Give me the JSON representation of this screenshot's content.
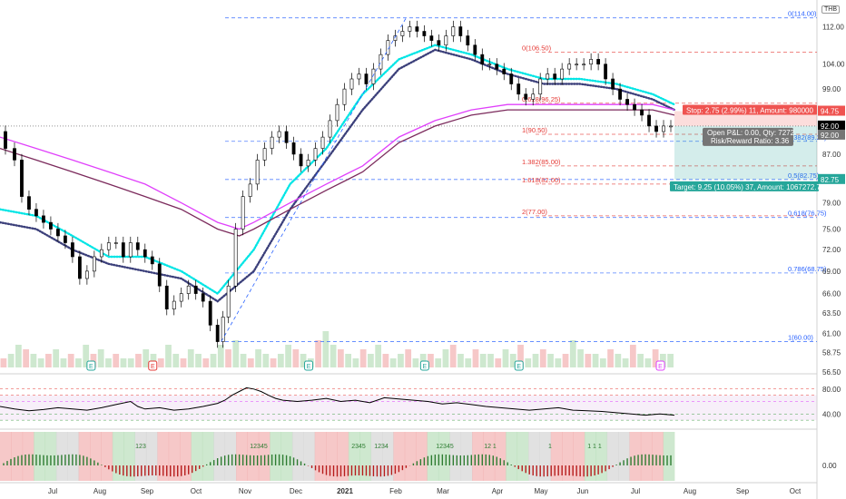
{
  "currency": "THB",
  "chart_data": [
    {
      "type": "candlestick",
      "panel": "price",
      "y_axis_ticks": [
        56.5,
        58.75,
        61.0,
        63.5,
        66.0,
        69.0,
        72.0,
        75.0,
        79.0,
        83.0,
        87.0,
        92.0,
        99.0,
        104.0,
        112.0
      ],
      "ylim": [
        56.5,
        116
      ],
      "x_axis_ticks": [
        {
          "label": "Jul",
          "bold": false
        },
        {
          "label": "Aug",
          "bold": false
        },
        {
          "label": "Sep",
          "bold": false
        },
        {
          "label": "Oct",
          "bold": false
        },
        {
          "label": "Nov",
          "bold": false
        },
        {
          "label": "Dec",
          "bold": false
        },
        {
          "label": "2021",
          "bold": true
        },
        {
          "label": "Feb",
          "bold": false
        },
        {
          "label": "Mar",
          "bold": false
        },
        {
          "label": "Apr",
          "bold": false
        },
        {
          "label": "May",
          "bold": false
        },
        {
          "label": "Jun",
          "bold": false
        },
        {
          "label": "Jul",
          "bold": false
        },
        {
          "label": "Aug",
          "bold": false
        },
        {
          "label": "Sep",
          "bold": false
        },
        {
          "label": "Oct",
          "bold": false
        }
      ],
      "close_path": [
        [
          0,
          91
        ],
        [
          3,
          88
        ],
        [
          5,
          86
        ],
        [
          7,
          80
        ],
        [
          9,
          78
        ],
        [
          11,
          77
        ],
        [
          13,
          76
        ],
        [
          15,
          75
        ],
        [
          17,
          74
        ],
        [
          19,
          73
        ],
        [
          21,
          71
        ],
        [
          23,
          68
        ],
        [
          25,
          69
        ],
        [
          27,
          71
        ],
        [
          29,
          72
        ],
        [
          31,
          73
        ],
        [
          33,
          73
        ],
        [
          35,
          71
        ],
        [
          37,
          73
        ],
        [
          39,
          72
        ],
        [
          41,
          71
        ],
        [
          43,
          70
        ],
        [
          45,
          67
        ],
        [
          47,
          64
        ],
        [
          49,
          65
        ],
        [
          51,
          66
        ],
        [
          53,
          67
        ],
        [
          55,
          66
        ],
        [
          57,
          65
        ],
        [
          59,
          62
        ],
        [
          61,
          60
        ],
        [
          62,
          63
        ],
        [
          64,
          67
        ],
        [
          66,
          75
        ],
        [
          68,
          80
        ],
        [
          70,
          82
        ],
        [
          72,
          86
        ],
        [
          74,
          88
        ],
        [
          76,
          90
        ],
        [
          78,
          91
        ],
        [
          80,
          89
        ],
        [
          82,
          87
        ],
        [
          84,
          85
        ],
        [
          86,
          86
        ],
        [
          88,
          88
        ],
        [
          90,
          90
        ],
        [
          92,
          93
        ],
        [
          94,
          96
        ],
        [
          96,
          99
        ],
        [
          98,
          101
        ],
        [
          100,
          102
        ],
        [
          102,
          100
        ],
        [
          104,
          103
        ],
        [
          106,
          106
        ],
        [
          108,
          109
        ],
        [
          110,
          110
        ],
        [
          112,
          111
        ],
        [
          114,
          112
        ],
        [
          116,
          111
        ],
        [
          118,
          110
        ],
        [
          120,
          109
        ],
        [
          122,
          108
        ],
        [
          124,
          110
        ],
        [
          126,
          112
        ],
        [
          128,
          110
        ],
        [
          130,
          108
        ],
        [
          132,
          106
        ],
        [
          134,
          104
        ],
        [
          136,
          104
        ],
        [
          138,
          103
        ],
        [
          140,
          102
        ],
        [
          142,
          100
        ],
        [
          144,
          98
        ],
        [
          146,
          97
        ],
        [
          148,
          98
        ],
        [
          150,
          101
        ],
        [
          152,
          102
        ],
        [
          154,
          101
        ],
        [
          156,
          103
        ],
        [
          158,
          104
        ],
        [
          160,
          104
        ],
        [
          162,
          104
        ],
        [
          164,
          105
        ],
        [
          166,
          104
        ],
        [
          168,
          101
        ],
        [
          170,
          99
        ],
        [
          172,
          97
        ],
        [
          174,
          96
        ],
        [
          176,
          95
        ],
        [
          178,
          94
        ],
        [
          180,
          92
        ],
        [
          182,
          91
        ],
        [
          184,
          92
        ],
        [
          186,
          92
        ]
      ],
      "series": [
        {
          "name": "",
          "color": "#00e5e5",
          "style": "dotted",
          "values": [
            [
              0,
              78
            ],
            [
              10,
              77
            ],
            [
              20,
              74
            ],
            [
              30,
              71
            ],
            [
              40,
              71
            ],
            [
              50,
              69
            ],
            [
              60,
              66
            ],
            [
              70,
              72
            ],
            [
              80,
              82
            ],
            [
              90,
              88
            ],
            [
              100,
              98
            ],
            [
              110,
              105
            ],
            [
              120,
              108
            ],
            [
              130,
              106
            ],
            [
              140,
              103
            ],
            [
              150,
              101
            ],
            [
              160,
              101
            ],
            [
              170,
              100
            ],
            [
              180,
              98
            ],
            [
              186,
              96
            ]
          ]
        },
        {
          "name": "",
          "color": "#3b3f7a",
          "style": "dotted",
          "values": [
            [
              0,
              76
            ],
            [
              10,
              75
            ],
            [
              20,
              72
            ],
            [
              30,
              70
            ],
            [
              40,
              69
            ],
            [
              50,
              68
            ],
            [
              60,
              65
            ],
            [
              70,
              69
            ],
            [
              80,
              78
            ],
            [
              90,
              86
            ],
            [
              100,
              95
            ],
            [
              110,
              103
            ],
            [
              120,
              107
            ],
            [
              130,
              105
            ],
            [
              140,
              102
            ],
            [
              150,
              100
            ],
            [
              160,
              100
            ],
            [
              170,
              99
            ],
            [
              180,
              97
            ],
            [
              186,
              95
            ]
          ]
        },
        {
          "name": "",
          "color": "#e040fb",
          "style": "solid",
          "values": [
            [
              0,
              90
            ],
            [
              10,
              88
            ],
            [
              20,
              86
            ],
            [
              30,
              84
            ],
            [
              40,
              82
            ],
            [
              50,
              79
            ],
            [
              60,
              76
            ],
            [
              66,
              75
            ],
            [
              70,
              76
            ],
            [
              80,
              79
            ],
            [
              90,
              82
            ],
            [
              100,
              85
            ],
            [
              110,
              90
            ],
            [
              120,
              93
            ],
            [
              130,
              95
            ],
            [
              140,
              96
            ],
            [
              150,
              96
            ],
            [
              160,
              96
            ],
            [
              170,
              96
            ],
            [
              180,
              96
            ],
            [
              186,
              95
            ]
          ]
        },
        {
          "name": "",
          "color": "#7b2a5c",
          "style": "solid",
          "values": [
            [
              0,
              88
            ],
            [
              10,
              86
            ],
            [
              20,
              84
            ],
            [
              30,
              82
            ],
            [
              40,
              80
            ],
            [
              50,
              78
            ],
            [
              60,
              75
            ],
            [
              66,
              74
            ],
            [
              70,
              75
            ],
            [
              80,
              78
            ],
            [
              90,
              81
            ],
            [
              100,
              84
            ],
            [
              110,
              89
            ],
            [
              120,
              92
            ],
            [
              130,
              94
            ],
            [
              140,
              95
            ],
            [
              150,
              95
            ],
            [
              160,
              95
            ],
            [
              170,
              95
            ],
            [
              180,
              95
            ],
            [
              186,
              94
            ]
          ]
        }
      ],
      "volume": [
        2,
        3,
        5,
        4,
        3,
        2,
        3,
        4,
        2,
        3,
        2,
        5,
        3,
        4,
        2,
        3,
        2,
        2,
        3,
        4,
        3,
        2,
        5,
        3,
        2,
        4,
        3,
        2,
        3,
        5,
        4,
        6,
        3,
        2,
        4,
        3,
        2,
        3,
        5,
        4,
        3,
        2,
        6,
        8,
        5,
        4,
        3,
        2,
        4,
        3,
        5,
        3,
        2,
        3,
        4,
        2,
        3,
        3,
        2,
        4,
        5,
        3,
        2,
        4,
        3,
        3,
        2,
        4,
        3,
        5,
        2,
        3,
        4,
        3,
        2,
        3,
        6,
        4,
        3,
        3,
        2,
        4,
        3,
        2,
        5,
        3,
        2,
        4,
        3,
        3
      ],
      "fibonacci": [
        {
          "label": "0(114.00)",
          "value": 114.0,
          "color": "#2962ff",
          "side": "right"
        },
        {
          "label": "0(106.50)",
          "value": 106.5,
          "color": "#e53935",
          "side": "left"
        },
        {
          "label": "0.618(96.25)",
          "value": 96.25,
          "color": "#e53935",
          "side": "left"
        },
        {
          "label": "1(90.50)",
          "value": 90.5,
          "color": "#e53935",
          "side": "left"
        },
        {
          "label": "0.382(89.25)",
          "value": 89.25,
          "color": "#2962ff",
          "side": "right"
        },
        {
          "label": "1.382(85.00)",
          "value": 85.0,
          "color": "#e53935",
          "side": "left"
        },
        {
          "label": "0.5(82.75)",
          "value": 82.75,
          "color": "#2962ff",
          "side": "right"
        },
        {
          "label": "1.618(82.00)",
          "value": 82.0,
          "color": "#e53935",
          "side": "left"
        },
        {
          "label": "2(77.00)",
          "value": 77.0,
          "color": "#e53935",
          "side": "left"
        },
        {
          "label": "0.618(76.75)",
          "value": 76.75,
          "color": "#2962ff",
          "side": "right"
        },
        {
          "label": "0.786(68.75)",
          "value": 68.75,
          "color": "#2962ff",
          "side": "right"
        },
        {
          "label": "1(60.00)",
          "value": 60.0,
          "color": "#2962ff",
          "side": "right"
        }
      ],
      "position": {
        "stop_label": "Stop: 2.75 (2.99%) 11, Amount: 980000",
        "stop_price": "94.75",
        "stop_value": 94.75,
        "entry_price": "92.00",
        "entry_value": 92.0,
        "last_price": "92.00",
        "target_label": "Target: 9.25 (10.05%) 37, Amount: 1067272.7",
        "target_price": "82.75",
        "target_value": 82.75,
        "open_pl": "Open P&L: 0.00, Qty: 7272",
        "rr": "Risk/Reward Ratio: 3.36"
      },
      "earnings_markers": [
        {
          "label": "E",
          "x": 25,
          "color": "#26a69a"
        },
        {
          "label": "E",
          "x": 42,
          "color": "#e53935"
        },
        {
          "label": "E",
          "x": 85,
          "color": "#26a69a"
        },
        {
          "label": "E",
          "x": 117,
          "color": "#26a69a"
        },
        {
          "label": "E",
          "x": 143,
          "color": "#26a69a"
        },
        {
          "label": "E",
          "x": 182,
          "color": "#e040fb"
        }
      ]
    },
    {
      "type": "line",
      "panel": "rsi",
      "y_axis_ticks": [
        40.0,
        80.0
      ],
      "ylim": [
        20,
        100
      ],
      "levels": [
        30,
        40,
        60,
        70,
        80
      ],
      "series": [
        {
          "name": "",
          "color": "#000000",
          "values": [
            [
              0,
              52
            ],
            [
              4,
              48
            ],
            [
              8,
              45
            ],
            [
              12,
              47
            ],
            [
              16,
              50
            ],
            [
              20,
              48
            ],
            [
              24,
              46
            ],
            [
              28,
              50
            ],
            [
              32,
              55
            ],
            [
              36,
              60
            ],
            [
              38,
              52
            ],
            [
              40,
              48
            ],
            [
              44,
              50
            ],
            [
              48,
              46
            ],
            [
              52,
              48
            ],
            [
              56,
              52
            ],
            [
              60,
              57
            ],
            [
              62,
              62
            ],
            [
              64,
              70
            ],
            [
              66,
              76
            ],
            [
              68,
              82
            ],
            [
              70,
              80
            ],
            [
              72,
              76
            ],
            [
              74,
              70
            ],
            [
              76,
              65
            ],
            [
              78,
              62
            ],
            [
              82,
              60
            ],
            [
              86,
              62
            ],
            [
              90,
              65
            ],
            [
              94,
              60
            ],
            [
              98,
              62
            ],
            [
              102,
              58
            ],
            [
              106,
              66
            ],
            [
              110,
              64
            ],
            [
              114,
              62
            ],
            [
              118,
              60
            ],
            [
              122,
              56
            ],
            [
              126,
              58
            ],
            [
              130,
              55
            ],
            [
              134,
              52
            ],
            [
              138,
              50
            ],
            [
              142,
              48
            ],
            [
              146,
              46
            ],
            [
              150,
              48
            ],
            [
              154,
              50
            ],
            [
              158,
              46
            ],
            [
              162,
              45
            ],
            [
              166,
              44
            ],
            [
              170,
              42
            ],
            [
              174,
              40
            ],
            [
              178,
              38
            ],
            [
              182,
              40
            ],
            [
              186,
              38
            ]
          ]
        }
      ]
    },
    {
      "type": "bar",
      "panel": "macd",
      "y_axis_ticks": [
        0.0
      ],
      "sequence_labels": [
        "123",
        "12345",
        "2345",
        "1234",
        "12345",
        "12 1",
        "1",
        "1 1 1"
      ]
    }
  ]
}
